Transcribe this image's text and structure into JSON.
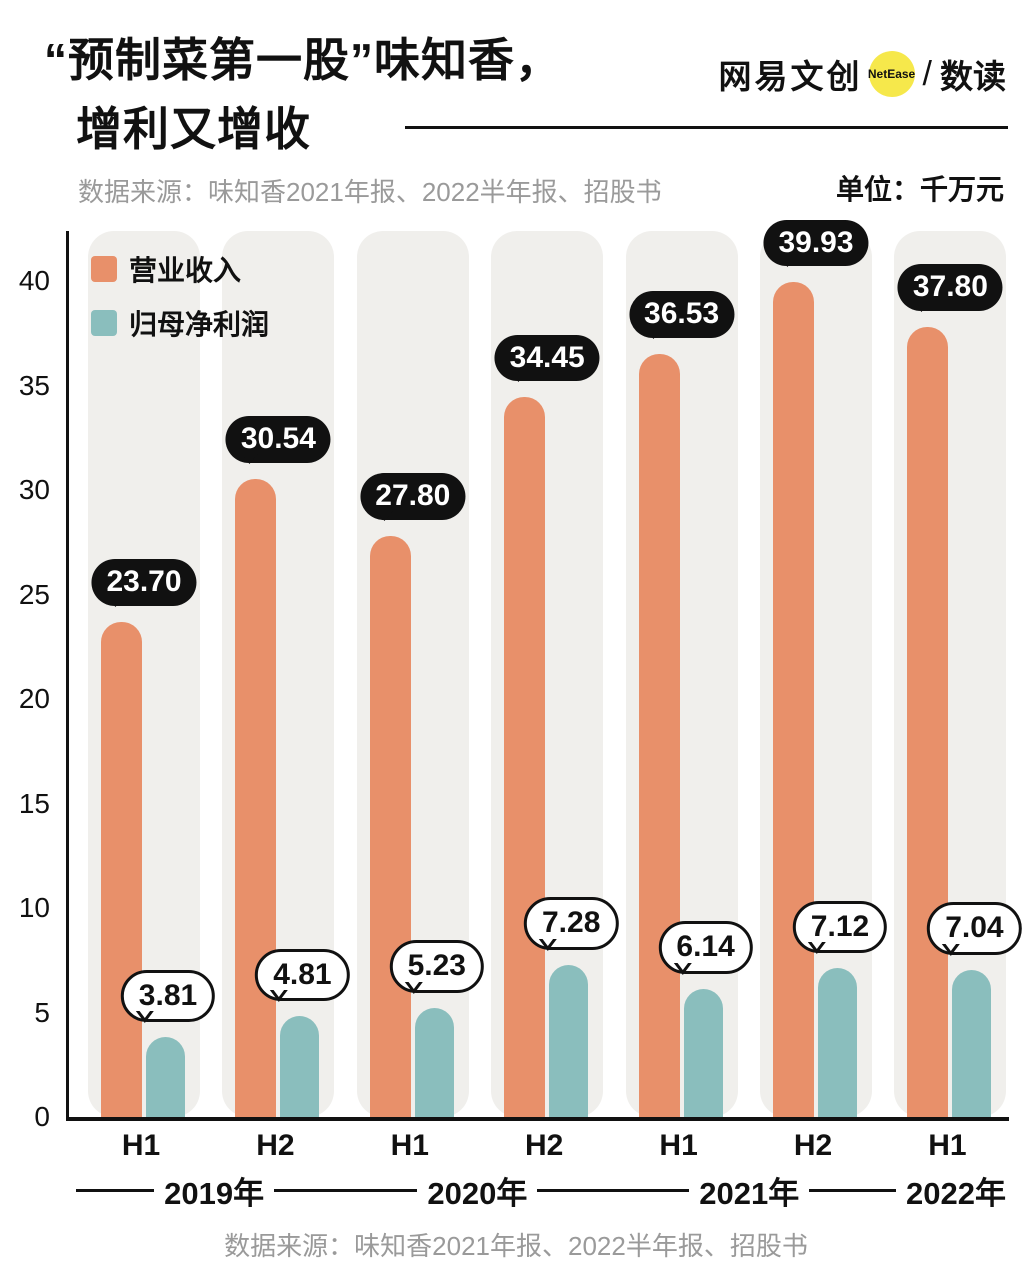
{
  "header": {
    "title_line1": "“预制菜第一股”味知香，",
    "title_line2": "增利又增收",
    "logo": {
      "brand": "网易文创",
      "badge": "NetEase",
      "slash": "/",
      "sub": "数读"
    },
    "source": "数据来源：味知香2021年报、2022半年报、招股书",
    "unit": "单位：千万元"
  },
  "chart_data": {
    "type": "bar",
    "title": "“预制菜第一股”味知香，增利又增收",
    "unit": "千万元",
    "categories": [
      "H1",
      "H2",
      "H1",
      "H2",
      "H1",
      "H2",
      "H1"
    ],
    "year_groups": [
      {
        "label": "2019年",
        "span": 2
      },
      {
        "label": "2020年",
        "span": 2
      },
      {
        "label": "2021年",
        "span": 2
      },
      {
        "label": "2022年",
        "span": 1
      }
    ],
    "series": [
      {
        "name": "营业收入",
        "color": "#E8906A",
        "values": [
          23.7,
          30.54,
          27.8,
          34.45,
          36.53,
          39.93,
          37.8
        ]
      },
      {
        "name": "归母净利润",
        "color": "#8ABEBD",
        "values": [
          3.81,
          4.81,
          5.23,
          7.28,
          6.14,
          7.12,
          7.04
        ]
      }
    ],
    "ylim": [
      0,
      42.4
    ],
    "yticks": [
      0,
      5,
      10,
      15,
      20,
      25,
      30,
      35,
      40
    ],
    "grid": false,
    "legend_position": "top-left",
    "band_background": "#F0EFEC"
  },
  "footer": {
    "source": "数据来源：味知香2021年报、2022半年报、招股书"
  }
}
